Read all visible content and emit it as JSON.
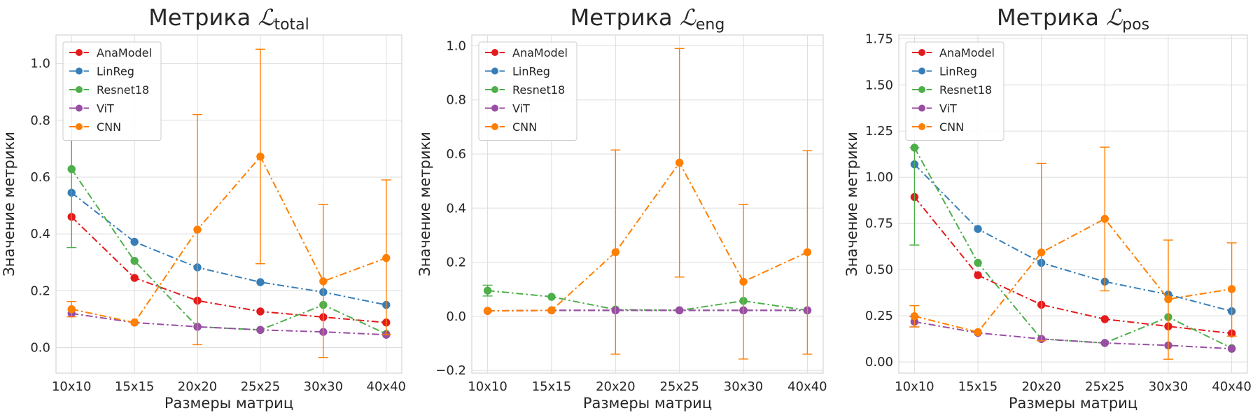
{
  "chart_data": [
    {
      "type": "line",
      "title": "Метрика",
      "title_sub": "total",
      "xlabel": "Размеры матриц",
      "ylabel": "Значение метрики",
      "categories": [
        "10x10",
        "15x15",
        "20x20",
        "25x25",
        "30x30",
        "40x40"
      ],
      "ylim": [
        -0.09,
        1.1
      ],
      "yticks": [
        0.0,
        0.2,
        0.4,
        0.6,
        0.8,
        1.0
      ],
      "ytick_labels": [
        "0.0",
        "0.2",
        "0.4",
        "0.6",
        "0.8",
        "1.0"
      ],
      "legend_position": "top-left",
      "grid": true,
      "series": [
        {
          "name": "AnaModel",
          "color": "#e41a1c",
          "values": [
            0.46,
            0.245,
            0.165,
            0.127,
            0.107,
            0.088
          ],
          "err_low": [
            null,
            null,
            null,
            null,
            null,
            null
          ],
          "err_high": [
            null,
            null,
            null,
            null,
            null,
            null
          ]
        },
        {
          "name": "LinReg",
          "color": "#377eb8",
          "values": [
            0.545,
            0.372,
            0.282,
            0.23,
            0.195,
            0.15
          ],
          "err_low": [
            null,
            null,
            null,
            null,
            null,
            null
          ],
          "err_high": [
            null,
            null,
            null,
            null,
            null,
            null
          ]
        },
        {
          "name": "Resnet18",
          "color": "#4daf4a",
          "values": [
            0.628,
            0.305,
            0.073,
            0.062,
            0.15,
            0.048
          ],
          "err_low": [
            0.352,
            null,
            null,
            null,
            null,
            null
          ],
          "err_high": [
            0.905,
            null,
            null,
            null,
            null,
            null
          ]
        },
        {
          "name": "ViT",
          "color": "#984ea3",
          "values": [
            0.12,
            0.088,
            0.073,
            0.062,
            0.055,
            0.045
          ],
          "err_low": [
            null,
            null,
            null,
            null,
            null,
            null
          ],
          "err_high": [
            null,
            null,
            null,
            null,
            null,
            null
          ]
        },
        {
          "name": "CNN",
          "color": "#ff7f00",
          "values": [
            0.135,
            0.088,
            0.415,
            0.672,
            0.233,
            0.315
          ],
          "err_low": [
            0.108,
            null,
            0.01,
            0.295,
            -0.035,
            0.045
          ],
          "err_high": [
            0.162,
            null,
            0.82,
            1.05,
            0.503,
            0.59
          ]
        }
      ]
    },
    {
      "type": "line",
      "title": "Метрика",
      "title_sub": "eng",
      "xlabel": "Размеры матриц",
      "ylabel": "Значение метрики",
      "categories": [
        "10x10",
        "15x15",
        "20x20",
        "25x25",
        "30x30",
        "40x40"
      ],
      "ylim": [
        -0.21,
        1.04
      ],
      "yticks": [
        -0.2,
        0.0,
        0.2,
        0.4,
        0.6,
        0.8,
        1.0
      ],
      "ytick_labels": [
        "−0.2",
        "0.0",
        "0.2",
        "0.4",
        "0.6",
        "0.8",
        "1.0"
      ],
      "legend_position": "top-left",
      "grid": true,
      "series": [
        {
          "name": "AnaModel",
          "color": "#e41a1c",
          "values": [
            0.02,
            0.022,
            0.022,
            0.022,
            0.022,
            0.022
          ],
          "err_low": [
            null,
            null,
            null,
            null,
            null,
            null
          ],
          "err_high": [
            null,
            null,
            null,
            null,
            null,
            null
          ]
        },
        {
          "name": "LinReg",
          "color": "#377eb8",
          "values": [
            0.02,
            0.022,
            0.022,
            0.022,
            0.022,
            0.022
          ],
          "err_low": [
            null,
            null,
            null,
            null,
            null,
            null
          ],
          "err_high": [
            null,
            null,
            null,
            null,
            null,
            null
          ]
        },
        {
          "name": "Resnet18",
          "color": "#4daf4a",
          "values": [
            0.095,
            0.072,
            0.025,
            0.022,
            0.057,
            0.022
          ],
          "err_low": [
            0.075,
            null,
            null,
            null,
            null,
            null
          ],
          "err_high": [
            0.115,
            null,
            null,
            null,
            null,
            null
          ]
        },
        {
          "name": "ViT",
          "color": "#984ea3",
          "values": [
            0.02,
            0.022,
            0.022,
            0.022,
            0.022,
            0.022
          ],
          "err_low": [
            null,
            null,
            null,
            null,
            null,
            null
          ],
          "err_high": [
            null,
            null,
            null,
            null,
            null,
            null
          ]
        },
        {
          "name": "CNN",
          "color": "#ff7f00",
          "values": [
            0.02,
            0.022,
            0.237,
            0.568,
            0.128,
            0.237
          ],
          "err_low": [
            null,
            null,
            -0.14,
            0.145,
            -0.158,
            -0.14
          ],
          "err_high": [
            null,
            null,
            0.615,
            0.99,
            0.413,
            0.612
          ]
        }
      ]
    },
    {
      "type": "line",
      "title": "Метрика",
      "title_sub": "pos",
      "xlabel": "Размеры матриц",
      "ylabel": "Значение метрики",
      "categories": [
        "10x10",
        "15x15",
        "20x20",
        "25x25",
        "30x30",
        "40x40"
      ],
      "ylim": [
        -0.06,
        1.77
      ],
      "yticks": [
        0.0,
        0.25,
        0.5,
        0.75,
        1.0,
        1.25,
        1.5,
        1.75
      ],
      "ytick_labels": [
        "0.00",
        "0.25",
        "0.50",
        "0.75",
        "1.00",
        "1.25",
        "1.50",
        "1.75"
      ],
      "legend_position": "top-left",
      "grid": true,
      "series": [
        {
          "name": "AnaModel",
          "color": "#e41a1c",
          "values": [
            0.893,
            0.47,
            0.31,
            0.232,
            0.193,
            0.155
          ],
          "err_low": [
            null,
            null,
            null,
            null,
            null,
            null
          ],
          "err_high": [
            null,
            null,
            null,
            null,
            null,
            null
          ]
        },
        {
          "name": "LinReg",
          "color": "#377eb8",
          "values": [
            1.07,
            0.72,
            0.537,
            0.435,
            0.365,
            0.275
          ],
          "err_low": [
            null,
            null,
            null,
            null,
            null,
            null
          ],
          "err_high": [
            null,
            null,
            null,
            null,
            null,
            null
          ]
        },
        {
          "name": "Resnet18",
          "color": "#4daf4a",
          "values": [
            1.16,
            0.537,
            0.125,
            0.103,
            0.243,
            0.075
          ],
          "err_low": [
            0.633,
            null,
            null,
            null,
            null,
            null
          ],
          "err_high": [
            1.16,
            null,
            null,
            null,
            null,
            null
          ]
        },
        {
          "name": "ViT",
          "color": "#984ea3",
          "values": [
            0.218,
            0.158,
            0.125,
            0.103,
            0.09,
            0.072
          ],
          "err_low": [
            0.19,
            null,
            null,
            null,
            null,
            null
          ],
          "err_high": [
            0.246,
            null,
            null,
            null,
            null,
            null
          ]
        },
        {
          "name": "CNN",
          "color": "#ff7f00",
          "values": [
            0.248,
            0.162,
            0.593,
            0.775,
            0.34,
            0.395
          ],
          "err_low": [
            0.19,
            null,
            0.115,
            0.385,
            0.015,
            0.14
          ],
          "err_high": [
            0.305,
            null,
            1.075,
            1.163,
            0.66,
            0.645
          ]
        }
      ]
    }
  ]
}
